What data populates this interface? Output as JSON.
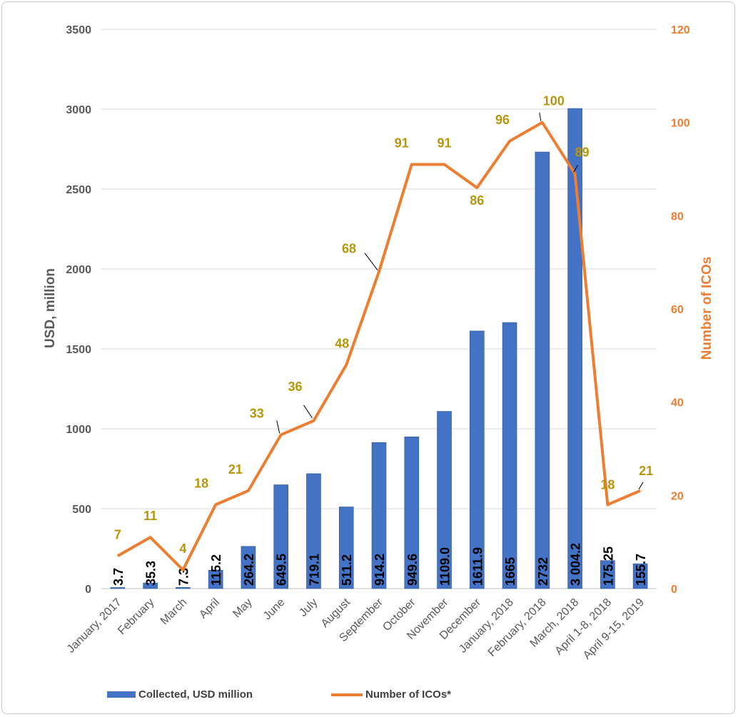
{
  "chart_data": {
    "type": "bar",
    "categories": [
      "January, 2017",
      "February",
      "March",
      "April",
      "May",
      "June",
      "July",
      "August",
      "September",
      "October",
      "November",
      "December",
      "January, 2018",
      "February, 2018",
      "March, 2018",
      "April 1-8, 2018",
      "April 9-15, 2019"
    ],
    "series": [
      {
        "name": "Collected, USD million",
        "type": "bar",
        "axis": "left",
        "values": [
          3.7,
          35.3,
          7.3,
          115.2,
          264.2,
          649.5,
          719.1,
          511.2,
          914.2,
          949.6,
          1109.0,
          1611.9,
          1665,
          2732,
          3004.2,
          175.25,
          155.7
        ],
        "labels": [
          "3.7",
          "35.3",
          "7.3",
          "115.2",
          "264.2",
          "649.5",
          "719.1",
          "511.2",
          "914.2",
          "949.6",
          "1109.0",
          "1611.9",
          "1665",
          "2732",
          "3 004.2",
          "175.25",
          "155.7"
        ],
        "color": "#4472C4"
      },
      {
        "name": "Number of ICOs*",
        "type": "line",
        "axis": "right",
        "values": [
          7,
          11,
          4,
          18,
          21,
          33,
          36,
          48,
          68,
          91,
          91,
          86,
          96,
          100,
          89,
          18,
          21
        ],
        "color": "#ED7D31",
        "label_color": "#B8960C"
      }
    ],
    "ylabel": "USD, million",
    "ylabel_right": "Number of ICOs",
    "ylim": [
      0,
      3500
    ],
    "ylim_right": [
      0,
      120
    ],
    "yticks": [
      0,
      500,
      1000,
      1500,
      2000,
      2500,
      3000,
      3500
    ],
    "yticks_right": [
      0,
      20,
      40,
      60,
      80,
      100,
      120
    ],
    "grid": true,
    "legend_position": "bottom"
  },
  "legend": {
    "bar_label": "Collected, USD million",
    "line_label": "Number of ICOs*"
  },
  "colors": {
    "bar": "#4472C4",
    "line": "#ED7D31",
    "line_label": "#B8960C",
    "axis_text": "#595959",
    "right_axis_text": "#ED7D31",
    "grid": "#d9d9d9"
  }
}
